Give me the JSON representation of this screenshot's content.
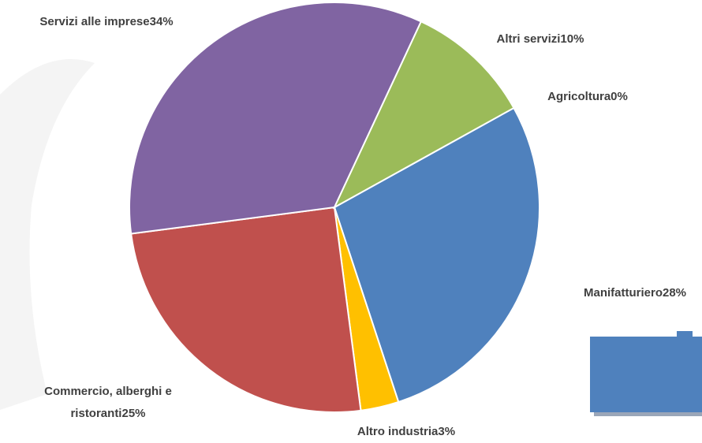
{
  "chart_data": {
    "type": "pie",
    "categories": [
      "Agricoltura",
      "Manifatturiero",
      "Altro industria",
      "Commercio, alberghi e ristoranti",
      "Servizi alle imprese",
      "Altri servizi"
    ],
    "values": [
      0,
      28,
      3,
      25,
      34,
      10
    ],
    "value_labels": [
      "0%",
      "28%",
      "3%",
      "25%",
      "34%",
      "10%"
    ],
    "colors": [
      "#f79646",
      "#4f81bd",
      "#ffc000",
      "#c0504d",
      "#8064a2",
      "#9bbb59"
    ]
  }
}
